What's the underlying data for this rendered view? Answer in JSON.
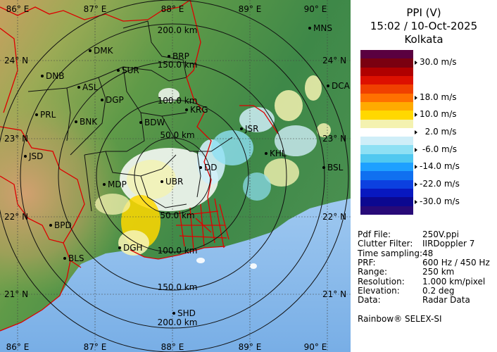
{
  "title": {
    "product": "PPI (V)",
    "datetime": "15:02 / 10-Oct-2025",
    "station": "Kolkata"
  },
  "colorbar": {
    "colors": [
      "#5a0040",
      "#7a0010",
      "#b00000",
      "#dd1000",
      "#f04000",
      "#ff7000",
      "#ffaa00",
      "#ffd800",
      "#f4f2b0",
      "#ffffff",
      "#cfeef8",
      "#8ee0f4",
      "#50c8f0",
      "#1ea0ff",
      "#1070f0",
      "#0c40e0",
      "#0818c0",
      "#0c0890",
      "#280a78"
    ],
    "labels": [
      {
        "text": "30.0 m/s",
        "index": 1
      },
      {
        "text": "18.0 m/s",
        "index": 5
      },
      {
        "text": "10.0 m/s",
        "index": 7
      },
      {
        "text": "  2.0 m/s",
        "index": 9
      },
      {
        "text": " -6.0 m/s",
        "index": 11
      },
      {
        "text": "-14.0 m/s",
        "index": 13
      },
      {
        "text": "-22.0 m/s",
        "index": 15
      },
      {
        "text": "-30.0 m/s",
        "index": 17
      }
    ]
  },
  "info": [
    {
      "label": "Pdf File:",
      "value": "250V.ppi"
    },
    {
      "label": "Clutter Filter:",
      "value": "IIRDoppler 7"
    },
    {
      "label": "Time sampling:",
      "value": "48"
    },
    {
      "label": "PRF:",
      "value": "600 Hz / 450 Hz"
    },
    {
      "label": "Range:",
      "value": "250 km"
    },
    {
      "label": "Resolution:",
      "value": "1.000 km/pixel"
    },
    {
      "label": "Elevation:",
      "value": "0.2 deg"
    },
    {
      "label": "Data:",
      "value": "Radar Data"
    }
  ],
  "credit": "Rainbow® SELEX-SI",
  "map": {
    "lon_ticks_top": [
      "86° E",
      "87° E",
      "88° E",
      "89° E",
      "90° E"
    ],
    "lon_ticks_bottom": [
      "86° E",
      "87° E",
      "88° E",
      "89° E",
      "90° E"
    ],
    "lat_ticks_left": [
      "24° N",
      "23° N",
      "22° N",
      "21° N"
    ],
    "lat_ticks_right": [
      "24° N",
      "23° N",
      "22° N",
      "21° N"
    ],
    "range_rings_north": [
      "200.0 km",
      "150.0 km",
      "100.0 km",
      "50.0 km"
    ],
    "range_rings_south": [
      "50.0 km",
      "100.0 km",
      "150.0 km",
      "200.0 km"
    ],
    "stations": [
      "MNS",
      "DMK",
      "BRP",
      "DNB",
      "SUR",
      "ASL",
      "DCA",
      "DGP",
      "PRL",
      "KRG",
      "BNK",
      "BDW",
      "JSR",
      "JSD",
      "KHL",
      "DD",
      "BSL",
      "MDP",
      "UBR",
      "BPD",
      "DGH",
      "BLS",
      "SHD"
    ]
  }
}
